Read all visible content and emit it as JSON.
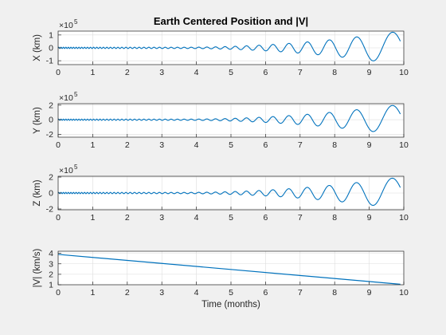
{
  "chart_data": {
    "type": "line",
    "title": "Earth Centered Position and |V|",
    "x_ticks": [
      "0",
      "1",
      "2",
      "3",
      "4",
      "5",
      "6",
      "7",
      "8",
      "9",
      "10"
    ],
    "xlim": [
      0,
      10
    ],
    "grid": true,
    "series_color": "#0072bd",
    "panels": [
      {
        "name": "x-panel",
        "ylabel": "X (km)",
        "multiplier": "×10",
        "exponent": "5",
        "ylim": [
          -1.3,
          1.3
        ],
        "y_ticks": [
          1,
          0,
          -1
        ],
        "y_tick_labels": [
          "1",
          "0",
          "-1"
        ],
        "signal": "oscillation",
        "amplitude_start": 0.05,
        "amplitude_end": 1.3,
        "x_end": 9.9
      },
      {
        "name": "y-panel",
        "ylabel": "Y (km)",
        "multiplier": "×10",
        "exponent": "5",
        "ylim": [
          -2.4,
          2.2
        ],
        "y_ticks": [
          2,
          0,
          -2
        ],
        "y_tick_labels": [
          "2",
          "0",
          "-2"
        ],
        "signal": "oscillation",
        "amplitude_start": 0.08,
        "amplitude_end": 2.1,
        "x_end": 9.9
      },
      {
        "name": "z-panel",
        "ylabel": "Z (km)",
        "multiplier": "×10",
        "exponent": "5",
        "ylim": [
          -2.1,
          2.1
        ],
        "y_ticks": [
          2,
          0,
          -2
        ],
        "y_tick_labels": [
          "2",
          "0",
          "-2"
        ],
        "signal": "oscillation",
        "amplitude_start": 0.08,
        "amplitude_end": 2.0,
        "x_end": 9.9
      },
      {
        "name": "v-panel",
        "ylabel": "|V| (km/s)",
        "xlabel": "Time (months)",
        "ylim": [
          1,
          4.2
        ],
        "y_ticks": [
          4,
          3,
          2,
          1
        ],
        "y_tick_labels": [
          "4",
          "3",
          "2",
          "1"
        ],
        "signal": "line",
        "x": [
          0,
          9.9
        ],
        "y": [
          3.9,
          1.05
        ]
      }
    ]
  }
}
